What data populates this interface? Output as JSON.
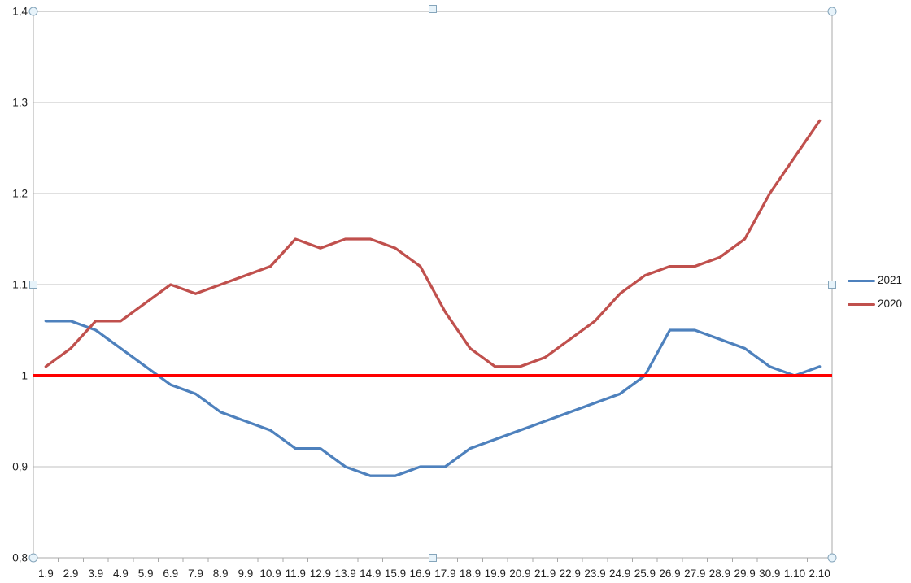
{
  "chart_data": {
    "type": "line",
    "categories": [
      "1.9",
      "2.9",
      "3.9",
      "4.9",
      "5.9",
      "6.9",
      "7.9",
      "8.9",
      "9.9",
      "10.9",
      "11.9",
      "12.9",
      "13.9",
      "14.9",
      "15.9",
      "16.9",
      "17.9",
      "18.9",
      "19.9",
      "20.9",
      "21.9",
      "22.9",
      "23.9",
      "24.9",
      "25.9",
      "26.9",
      "27.9",
      "28.9",
      "29.9",
      "30.9",
      "1.10",
      "2.10"
    ],
    "series": [
      {
        "name": "2021",
        "color": "#4e81bd",
        "values": [
          1.06,
          1.06,
          1.05,
          1.03,
          1.01,
          0.99,
          0.98,
          0.96,
          0.95,
          0.94,
          0.92,
          0.92,
          0.9,
          0.89,
          0.89,
          0.9,
          0.9,
          0.92,
          0.93,
          0.94,
          0.95,
          0.96,
          0.97,
          0.98,
          1.0,
          1.05,
          1.05,
          1.04,
          1.03,
          1.01,
          1.0,
          1.01
        ]
      },
      {
        "name": "2020",
        "color": "#c0504d",
        "values": [
          1.01,
          1.03,
          1.06,
          1.06,
          1.08,
          1.1,
          1.09,
          1.1,
          1.11,
          1.12,
          1.15,
          1.14,
          1.15,
          1.15,
          1.14,
          1.12,
          1.07,
          1.03,
          1.01,
          1.01,
          1.02,
          1.04,
          1.06,
          1.09,
          1.11,
          1.12,
          1.12,
          1.13,
          1.15,
          1.2,
          1.24,
          1.28
        ]
      }
    ],
    "reference_line": {
      "value": 1,
      "color": "#fe0000"
    },
    "y_ticks": [
      {
        "label": "1,4",
        "value": 1.4
      },
      {
        "label": "1,3",
        "value": 1.3
      },
      {
        "label": "1,2",
        "value": 1.2
      },
      {
        "label": "1,1",
        "value": 1.1
      },
      {
        "label": "1",
        "value": 1.0
      },
      {
        "label": "0,9",
        "value": 0.9
      },
      {
        "label": "0,8",
        "value": 0.8
      }
    ],
    "ylim": [
      0.8,
      1.4
    ],
    "grid": true,
    "legend_position": "right",
    "title": "",
    "xlabel": "",
    "ylabel": ""
  }
}
